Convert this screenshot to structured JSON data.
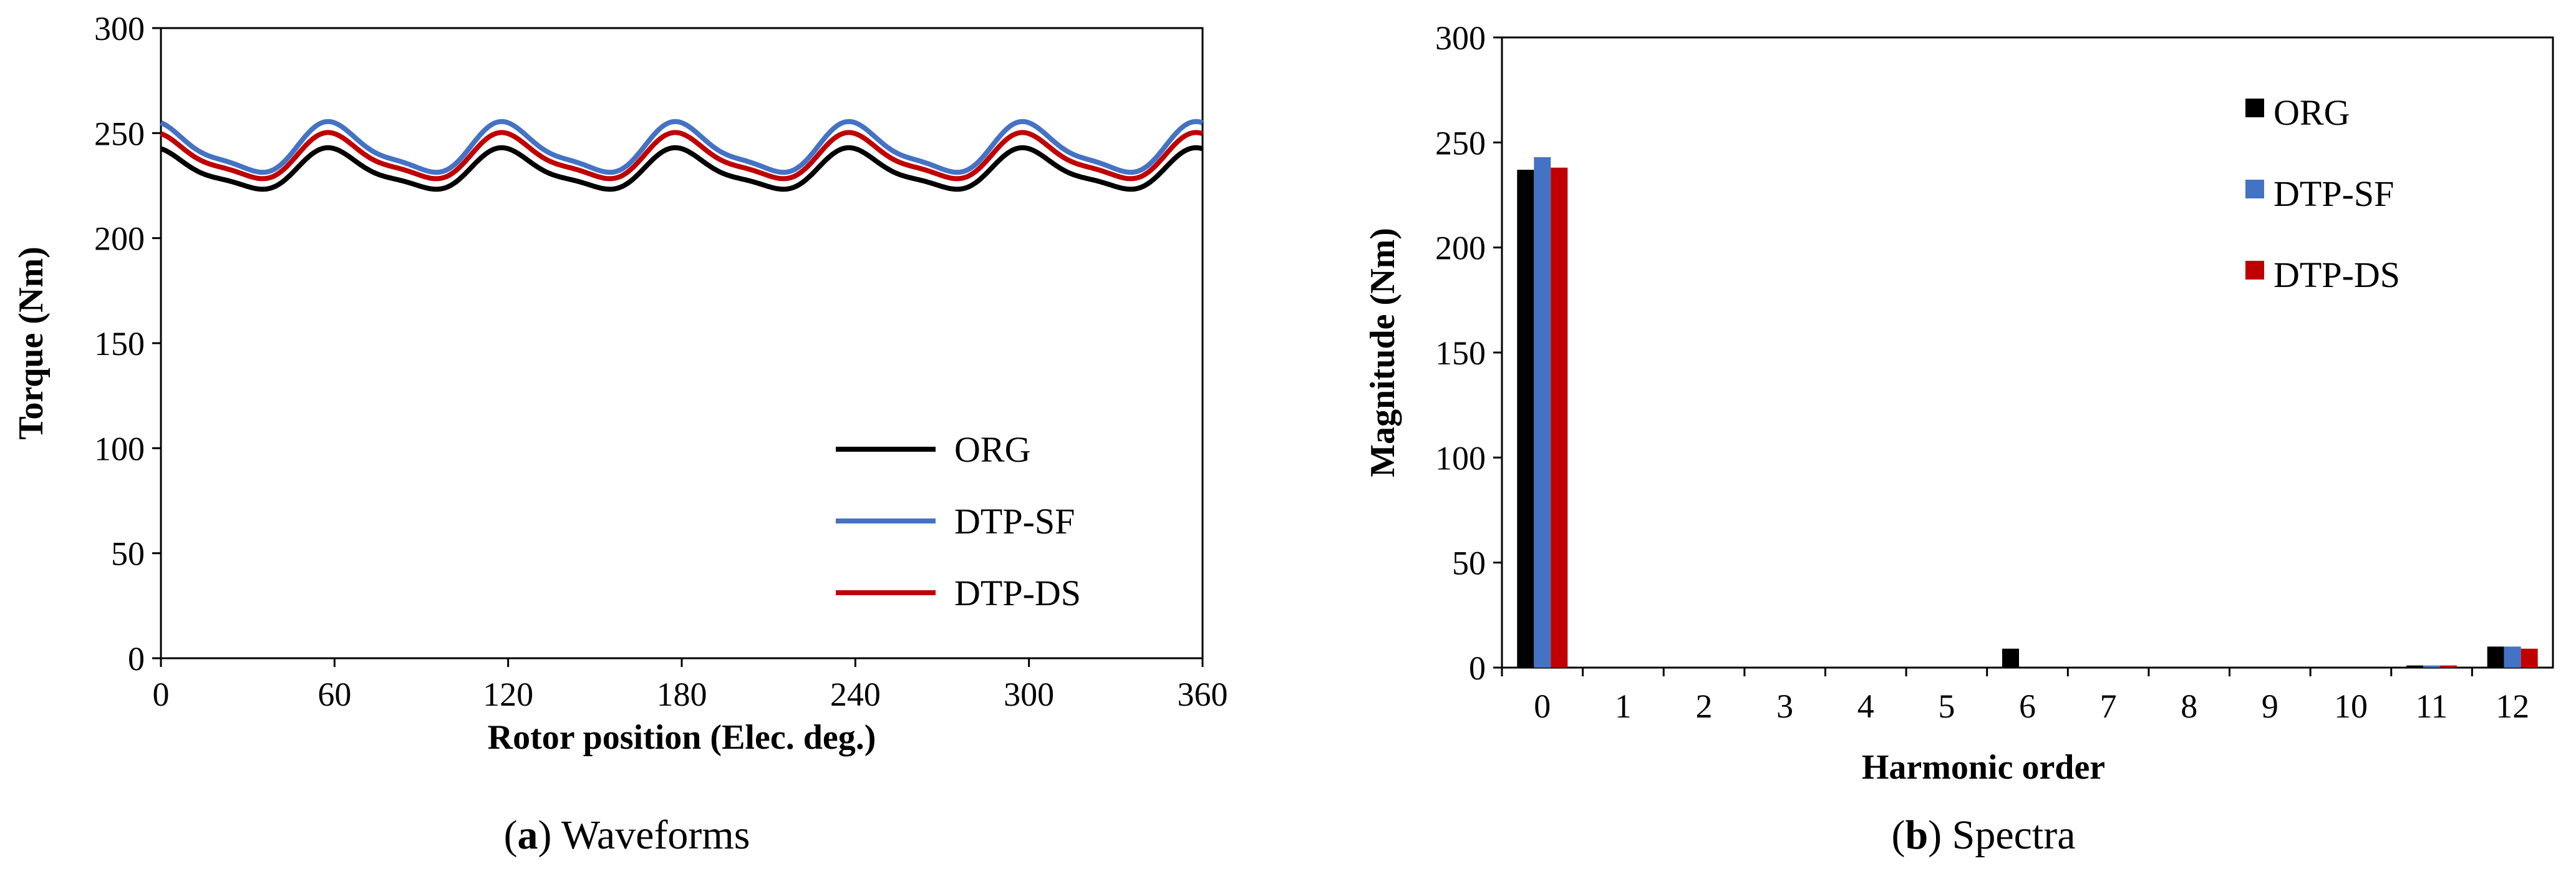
{
  "chart_data": [
    {
      "type": "line",
      "caption": {
        "label": "a",
        "text": "Waveforms"
      },
      "xlabel": "Rotor position (Elec. deg.)",
      "ylabel": "Torque (Nm)",
      "xlim": [
        0,
        360
      ],
      "ylim": [
        0,
        300
      ],
      "xticks": [
        "0",
        "60",
        "120",
        "180",
        "240",
        "300",
        "360"
      ],
      "yticks": [
        "0",
        "50",
        "100",
        "150",
        "200",
        "250",
        "300"
      ],
      "legend_position": "bottom-right",
      "period_deg": 60,
      "series": [
        {
          "name": "ORG",
          "color": "#000000",
          "mean": 232,
          "amplitude": 9,
          "phase_deg": 0
        },
        {
          "name": "DTP-SF",
          "color": "#4472C4",
          "mean": 242,
          "amplitude": 11,
          "phase_deg": 0
        },
        {
          "name": "DTP-DS",
          "color": "#C00000",
          "mean": 238,
          "amplitude": 10,
          "phase_deg": 0
        }
      ]
    },
    {
      "type": "bar",
      "caption": {
        "label": "b",
        "text": "Spectra"
      },
      "xlabel": "Harmonic order",
      "ylabel": "Magnitude (Nm)",
      "ylim": [
        0,
        300
      ],
      "yticks": [
        "0",
        "50",
        "100",
        "150",
        "200",
        "250",
        "300"
      ],
      "categories": [
        "0",
        "1",
        "2",
        "3",
        "4",
        "5",
        "6",
        "7",
        "8",
        "9",
        "10",
        "11",
        "12"
      ],
      "legend_position": "top-right",
      "series": [
        {
          "name": "ORG",
          "color": "#000000",
          "values": [
            237,
            0,
            0,
            0,
            0,
            0,
            9,
            0,
            0,
            0,
            0,
            1,
            10
          ]
        },
        {
          "name": "DTP-SF",
          "color": "#4472C4",
          "values": [
            243,
            0,
            0,
            0,
            0,
            0,
            0,
            0,
            0,
            0,
            0,
            1,
            10
          ]
        },
        {
          "name": "DTP-DS",
          "color": "#C00000",
          "values": [
            238,
            0,
            0,
            0,
            0,
            0,
            0,
            0,
            0,
            0,
            0,
            1,
            9
          ]
        }
      ]
    }
  ]
}
